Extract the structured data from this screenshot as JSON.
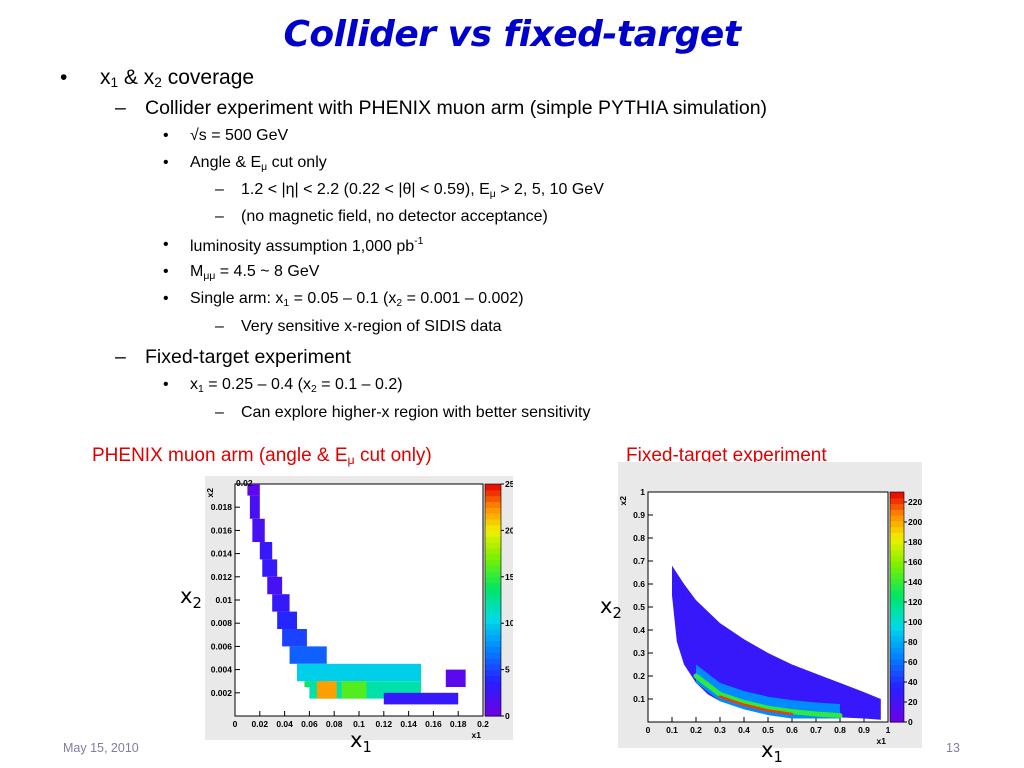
{
  "title": "Collider vs fixed-target",
  "bullets": {
    "b1": {
      "mark": "•",
      "pre": "x",
      "s1": "1",
      "mid": " & x",
      "s2": "2",
      "post": " coverage"
    },
    "b2": {
      "mark": "–",
      "text": "Collider experiment with PHENIX muon arm (simple PYTHIA simulation)"
    },
    "b3": {
      "mark": "•",
      "text": "√s = 500 GeV"
    },
    "b4": {
      "mark": "•",
      "pre": "Angle & E",
      "sub": "μ",
      "post": " cut only"
    },
    "b5": {
      "mark": "–",
      "pre": "1.2 < |η| < 2.2 (0.22 < |θ| < 0.59), E",
      "sub": "μ",
      "post": " > 2, 5, 10 GeV"
    },
    "b6": {
      "mark": "–",
      "text": "(no magnetic field, no detector acceptance)"
    },
    "b7": {
      "mark": "•",
      "pre": "luminosity assumption 1,000 pb",
      "sup": "-1"
    },
    "b8": {
      "mark": "•",
      "pre": "M",
      "sub": "μμ",
      "post": " = 4.5 ~ 8 GeV"
    },
    "b9": {
      "mark": "•",
      "pre": "Single arm: x",
      "s1": "1",
      "mid": " = 0.05 – 0.1 (x",
      "s2": "2",
      "post": " = 0.001 – 0.002)"
    },
    "b10": {
      "mark": "–",
      "text": "Very sensitive x-region of SIDIS data"
    },
    "b11": {
      "mark": "–",
      "text": "Fixed-target experiment"
    },
    "b12": {
      "mark": "•",
      "pre": "x",
      "s1": "1",
      "mid": " = 0.25 – 0.4 (x",
      "s2": "2",
      "post": " = 0.1 – 0.2)"
    },
    "b13": {
      "mark": "–",
      "text": "Can explore higher-x region with better sensitivity"
    }
  },
  "captions": {
    "left": {
      "pre": "PHENIX muon arm (angle & E",
      "sub": "μ",
      "post": " cut only)"
    },
    "right": "Fixed-target experiment"
  },
  "axis_vars": {
    "x_main": "x",
    "x_sub": "1",
    "y_main": "x",
    "y_sub": "2"
  },
  "footer": {
    "date": "May 15, 2010",
    "page": "13"
  },
  "colors": {
    "title": "#0000cc",
    "caption": "#e00000",
    "footer": "#7f7f9f"
  },
  "chart_data": [
    {
      "type": "heatmap",
      "title": "",
      "xlabel": "x1",
      "ylabel": "x2",
      "xlim": [
        0,
        0.2
      ],
      "ylim": [
        0,
        0.02
      ],
      "x_ticks": [
        "0",
        "0.02",
        "0.04",
        "0.06",
        "0.08",
        "0.1",
        "0.12",
        "0.14",
        "0.16",
        "0.18",
        "0.2"
      ],
      "y_ticks": [
        "0.002",
        "0.004",
        "0.006",
        "0.008",
        "0.01",
        "0.012",
        "0.014",
        "0.016",
        "0.018"
      ],
      "y_top_label": "0.02",
      "color_scale": {
        "min": 0,
        "max": 25,
        "ticks": [
          "0",
          "5",
          "10",
          "15",
          "20",
          "25"
        ]
      },
      "cells": [
        {
          "x": 0.01,
          "y": 0.019,
          "w": 0.01,
          "h": 0.001,
          "v": 1
        },
        {
          "x": 0.012,
          "y": 0.017,
          "w": 0.008,
          "h": 0.002,
          "v": 2
        },
        {
          "x": 0.014,
          "y": 0.015,
          "w": 0.01,
          "h": 0.002,
          "v": 2
        },
        {
          "x": 0.02,
          "y": 0.0135,
          "w": 0.01,
          "h": 0.0015,
          "v": 3
        },
        {
          "x": 0.022,
          "y": 0.012,
          "w": 0.012,
          "h": 0.0015,
          "v": 3
        },
        {
          "x": 0.026,
          "y": 0.0105,
          "w": 0.012,
          "h": 0.0015,
          "v": 2
        },
        {
          "x": 0.03,
          "y": 0.009,
          "w": 0.014,
          "h": 0.0015,
          "v": 3
        },
        {
          "x": 0.034,
          "y": 0.0075,
          "w": 0.016,
          "h": 0.0015,
          "v": 4
        },
        {
          "x": 0.038,
          "y": 0.006,
          "w": 0.02,
          "h": 0.0015,
          "v": 5
        },
        {
          "x": 0.044,
          "y": 0.0045,
          "w": 0.03,
          "h": 0.0015,
          "v": 6
        },
        {
          "x": 0.05,
          "y": 0.003,
          "w": 0.1,
          "h": 0.0015,
          "v": 10
        },
        {
          "x": 0.056,
          "y": 0.0025,
          "w": 0.02,
          "h": 0.0005,
          "v": 14
        },
        {
          "x": 0.06,
          "y": 0.0015,
          "w": 0.09,
          "h": 0.0015,
          "v": 12
        },
        {
          "x": 0.066,
          "y": 0.0015,
          "w": 0.016,
          "h": 0.0015,
          "v": 22
        },
        {
          "x": 0.086,
          "y": 0.0015,
          "w": 0.02,
          "h": 0.0015,
          "v": 16
        },
        {
          "x": 0.12,
          "y": 0.001,
          "w": 0.06,
          "h": 0.001,
          "v": 3
        },
        {
          "x": 0.17,
          "y": 0.0025,
          "w": 0.016,
          "h": 0.0015,
          "v": 1
        }
      ]
    },
    {
      "type": "heatmap",
      "title": "",
      "xlabel": "x1",
      "ylabel": "x2",
      "xlim": [
        0,
        1
      ],
      "ylim": [
        0,
        1
      ],
      "x_ticks": [
        "0",
        "0.1",
        "0.2",
        "0.3",
        "0.4",
        "0.5",
        "0.6",
        "0.7",
        "0.8",
        "0.9",
        "1"
      ],
      "y_ticks": [
        "0.1",
        "0.2",
        "0.3",
        "0.4",
        "0.5",
        "0.6",
        "0.7",
        "0.8",
        "0.9",
        "1"
      ],
      "color_scale": {
        "min": 0,
        "max": 230,
        "ticks": [
          "0",
          "20",
          "40",
          "60",
          "80",
          "100",
          "120",
          "140",
          "160",
          "180",
          "200",
          "220"
        ]
      },
      "band": {
        "upper_x": [
          0.1,
          0.15,
          0.2,
          0.3,
          0.4,
          0.5,
          0.6,
          0.7,
          0.8,
          0.9,
          0.97
        ],
        "upper_y": [
          0.68,
          0.6,
          0.53,
          0.43,
          0.36,
          0.3,
          0.25,
          0.21,
          0.17,
          0.13,
          0.1
        ],
        "lower_x": [
          0.97,
          0.9,
          0.8,
          0.7,
          0.6,
          0.5,
          0.4,
          0.3,
          0.25,
          0.2,
          0.15,
          0.12,
          0.1
        ],
        "lower_y": [
          0.01,
          0.015,
          0.02,
          0.025,
          0.03,
          0.04,
          0.06,
          0.09,
          0.12,
          0.17,
          0.25,
          0.35,
          0.55
        ],
        "ridge_x": [
          0.2,
          0.3,
          0.4,
          0.5,
          0.6,
          0.7,
          0.8
        ],
        "ridge_y": [
          0.2,
          0.12,
          0.085,
          0.06,
          0.045,
          0.035,
          0.028
        ],
        "peak": 220
      }
    }
  ]
}
